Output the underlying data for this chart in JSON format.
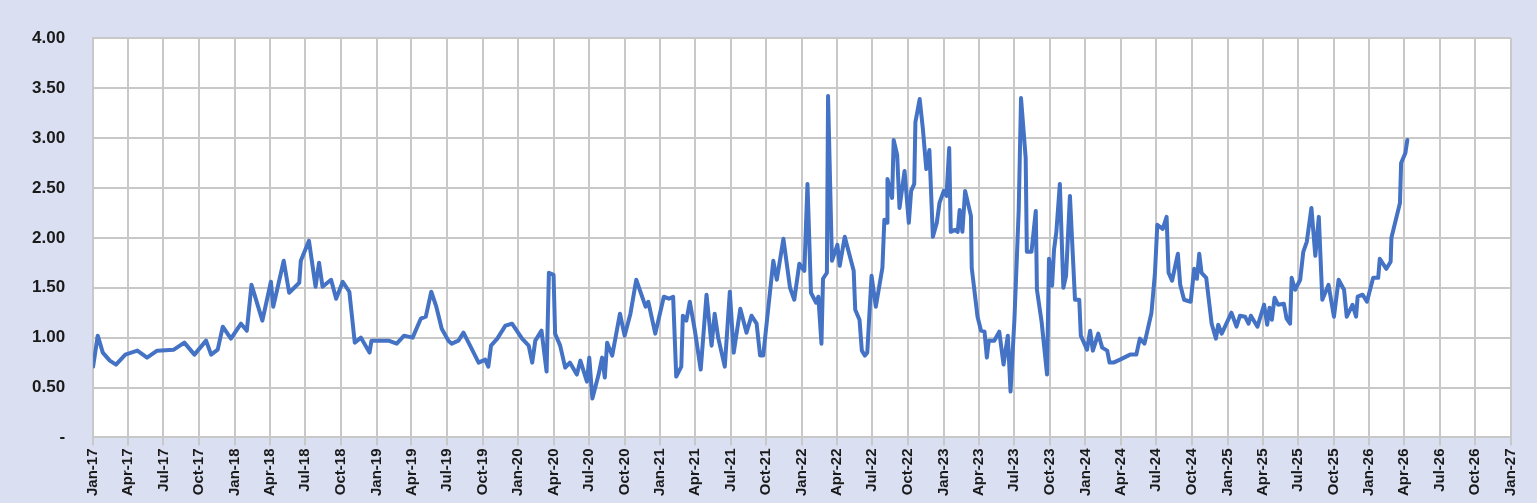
{
  "chart_data": {
    "type": "line",
    "x": [
      "2017-01-01",
      "2017-01-13",
      "2017-01-26",
      "2017-02-13",
      "2017-03-01",
      "2017-03-25",
      "2017-04-25",
      "2017-05-20",
      "2017-06-15",
      "2017-07-28",
      "2017-08-24",
      "2017-09-19",
      "2017-10-19",
      "2017-11-01",
      "2017-11-18",
      "2017-12-01",
      "2017-12-22",
      "2018-01-17",
      "2018-02-01",
      "2018-02-13",
      "2018-03-13",
      "2018-04-04",
      "2018-04-10",
      "2018-05-07",
      "2018-05-21",
      "2018-06-16",
      "2018-06-20",
      "2018-07-11",
      "2018-07-28",
      "2018-08-06",
      "2018-08-15",
      "2018-09-06",
      "2018-09-19",
      "2018-10-06",
      "2018-10-23",
      "2018-11-06",
      "2018-11-22",
      "2018-12-14",
      "2018-12-19",
      "2019-02-01",
      "2019-02-22",
      "2019-03-13",
      "2019-04-04",
      "2019-04-25",
      "2019-05-08",
      "2019-05-22",
      "2019-06-04",
      "2019-06-18",
      "2019-07-05",
      "2019-07-14",
      "2019-07-31",
      "2019-08-13",
      "2019-08-30",
      "2019-09-21",
      "2019-10-08",
      "2019-10-16",
      "2019-10-23",
      "2019-11-08",
      "2019-11-29",
      "2019-12-16",
      "2020-01-11",
      "2020-01-28",
      "2020-02-06",
      "2020-02-14",
      "2020-03-01",
      "2020-03-14",
      "2020-03-20",
      "2020-04-01",
      "2020-04-05",
      "2020-04-18",
      "2020-05-01",
      "2020-05-13",
      "2020-05-31",
      "2020-06-09",
      "2020-06-26",
      "2020-07-02",
      "2020-07-10",
      "2020-07-26",
      "2020-08-04",
      "2020-08-11",
      "2020-08-17",
      "2020-08-30",
      "2020-09-19",
      "2020-10-01",
      "2020-10-16",
      "2020-10-31",
      "2020-11-24",
      "2020-12-01",
      "2020-12-19",
      "2021-01-10",
      "2021-01-23",
      "2021-02-03",
      "2021-02-11",
      "2021-02-24",
      "2021-02-28",
      "2021-03-09",
      "2021-03-18",
      "2021-03-31",
      "2021-04-15",
      "2021-04-30",
      "2021-05-13",
      "2021-05-21",
      "2021-05-30",
      "2021-06-16",
      "2021-06-29",
      "2021-07-09",
      "2021-07-26",
      "2021-08-11",
      "2021-08-24",
      "2021-09-06",
      "2021-09-15",
      "2021-09-23",
      "2021-10-19",
      "2021-10-28",
      "2021-11-14",
      "2021-12-01",
      "2021-12-12",
      "2021-12-25",
      "2022-01-07",
      "2022-01-15",
      "2022-01-24",
      "2022-02-06",
      "2022-02-12",
      "2022-02-20",
      "2022-02-24",
      "2022-03-06",
      "2022-03-09",
      "2022-03-19",
      "2022-04-02",
      "2022-04-08",
      "2022-04-21",
      "2022-05-14",
      "2022-05-18",
      "2022-05-29",
      "2022-06-04",
      "2022-06-12",
      "2022-06-18",
      "2022-06-29",
      "2022-07-10",
      "2022-07-27",
      "2022-08-01",
      "2022-08-08",
      "2022-08-09",
      "2022-08-21",
      "2022-08-25",
      "2022-09-03",
      "2022-09-09",
      "2022-09-22",
      "2022-10-03",
      "2022-10-09",
      "2022-10-17",
      "2022-10-20",
      "2022-10-31",
      "2022-11-08",
      "2022-11-17",
      "2022-11-25",
      "2022-12-04",
      "2022-12-14",
      "2022-12-21",
      "2023-01-01",
      "2023-01-08",
      "2023-01-15",
      "2023-01-19",
      "2023-01-30",
      "2023-02-06",
      "2023-02-11",
      "2023-02-18",
      "2023-02-25",
      "2023-03-12",
      "2023-03-14",
      "2023-03-29",
      "2023-04-07",
      "2023-04-16",
      "2023-04-22",
      "2023-04-27",
      "2023-05-11",
      "2023-05-24",
      "2023-06-04",
      "2023-06-15",
      "2023-06-22",
      "2023-07-02",
      "2023-07-13",
      "2023-07-19",
      "2023-07-31",
      "2023-08-03",
      "2023-08-15",
      "2023-08-26",
      "2023-08-29",
      "2023-09-10",
      "2023-09-24",
      "2023-09-29",
      "2023-10-07",
      "2023-10-12",
      "2023-10-18",
      "2023-10-27",
      "2023-11-05",
      "2023-11-12",
      "2023-11-22",
      "2023-12-05",
      "2023-12-16",
      "2023-12-20",
      "2024-01-05",
      "2024-01-13",
      "2024-01-20",
      "2024-02-03",
      "2024-02-13",
      "2024-02-26",
      "2024-03-03",
      "2024-03-13",
      "2024-03-30",
      "2024-04-25",
      "2024-05-11",
      "2024-05-20",
      "2024-06-01",
      "2024-06-19",
      "2024-06-28",
      "2024-07-04",
      "2024-07-18",
      "2024-07-28",
      "2024-08-02",
      "2024-08-11",
      "2024-08-26",
      "2024-09-01",
      "2024-09-11",
      "2024-09-28",
      "2024-10-07",
      "2024-10-14",
      "2024-10-20",
      "2024-10-26",
      "2024-11-07",
      "2024-11-21",
      "2024-12-02",
      "2024-12-08",
      "2024-12-17",
      "2025-01-11",
      "2025-01-24",
      "2025-02-02",
      "2025-02-15",
      "2025-02-24",
      "2025-03-02",
      "2025-03-19",
      "2025-04-05",
      "2025-04-13",
      "2025-04-19",
      "2025-04-25",
      "2025-05-02",
      "2025-05-11",
      "2025-05-26",
      "2025-06-02",
      "2025-06-11",
      "2025-06-15",
      "2025-06-24",
      "2025-07-07",
      "2025-07-15",
      "2025-07-24",
      "2025-08-05",
      "2025-08-15",
      "2025-08-24",
      "2025-09-02",
      "2025-09-18",
      "2025-10-02",
      "2025-10-14",
      "2025-10-28",
      "2025-11-04",
      "2025-11-19",
      "2025-11-28",
      "2025-12-02",
      "2025-12-15",
      "2025-12-26",
      "2026-01-11",
      "2026-01-24",
      "2026-01-28",
      "2026-02-14",
      "2026-02-25",
      "2026-02-27",
      "2026-03-21",
      "2026-03-24",
      "2026-04-04",
      "2026-04-09"
    ],
    "series": [
      {
        "color": "#4472c4",
        "values": [
          0.71,
          1.02,
          0.85,
          0.77,
          0.73,
          0.83,
          0.87,
          0.8,
          0.87,
          0.88,
          0.95,
          0.83,
          0.97,
          0.83,
          0.88,
          1.11,
          0.99,
          1.14,
          1.07,
          1.53,
          1.17,
          1.56,
          1.31,
          1.77,
          1.45,
          1.55,
          1.77,
          1.97,
          1.51,
          1.75,
          1.51,
          1.58,
          1.39,
          1.56,
          1.46,
          0.95,
          1.0,
          0.85,
          0.97,
          0.97,
          0.94,
          1.02,
          1.0,
          1.19,
          1.21,
          1.46,
          1.31,
          1.09,
          0.97,
          0.94,
          0.97,
          1.05,
          0.92,
          0.75,
          0.78,
          0.71,
          0.92,
          0.99,
          1.12,
          1.14,
          0.99,
          0.92,
          0.75,
          0.97,
          1.07,
          0.66,
          1.65,
          1.63,
          1.04,
          0.92,
          0.7,
          0.75,
          0.63,
          0.77,
          0.56,
          0.8,
          0.39,
          0.63,
          0.8,
          0.6,
          0.95,
          0.82,
          1.24,
          1.02,
          1.24,
          1.58,
          1.31,
          1.36,
          1.04,
          1.41,
          1.39,
          1.41,
          0.61,
          0.71,
          1.22,
          1.17,
          1.36,
          1.07,
          0.68,
          1.43,
          0.92,
          1.24,
          1.0,
          0.71,
          1.46,
          0.85,
          1.29,
          1.05,
          1.22,
          1.14,
          0.82,
          0.82,
          1.77,
          1.58,
          1.99,
          1.5,
          1.38,
          1.74,
          1.67,
          2.54,
          1.45,
          1.35,
          1.41,
          0.94,
          1.59,
          1.65,
          3.42,
          1.77,
          1.93,
          1.72,
          2.01,
          1.67,
          1.28,
          1.18,
          0.87,
          0.82,
          0.85,
          1.62,
          1.31,
          1.7,
          2.18,
          2.15,
          2.59,
          2.4,
          2.98,
          2.83,
          2.3,
          2.67,
          2.15,
          2.47,
          2.54,
          3.16,
          3.39,
          3.1,
          2.69,
          2.88,
          2.01,
          2.15,
          2.35,
          2.47,
          2.42,
          2.9,
          2.06,
          2.08,
          2.06,
          2.28,
          2.06,
          2.47,
          2.22,
          1.7,
          1.21,
          1.07,
          1.06,
          0.8,
          0.97,
          0.97,
          1.06,
          0.73,
          1.02,
          0.46,
          1.18,
          2.27,
          3.4,
          2.8,
          1.86,
          1.86,
          2.27,
          1.48,
          1.16,
          0.63,
          1.79,
          1.52,
          1.88,
          2.06,
          2.54,
          1.5,
          1.62,
          2.42,
          1.38,
          1.38,
          1.02,
          0.88,
          1.07,
          0.87,
          1.04,
          0.9,
          0.87,
          0.75,
          0.75,
          0.78,
          0.83,
          0.83,
          0.99,
          0.94,
          1.25,
          1.65,
          2.13,
          2.09,
          2.21,
          1.65,
          1.57,
          1.84,
          1.53,
          1.38,
          1.36,
          1.69,
          1.59,
          1.84,
          1.65,
          1.6,
          1.14,
          0.99,
          1.13,
          1.04,
          1.25,
          1.11,
          1.22,
          1.21,
          1.14,
          1.22,
          1.11,
          1.33,
          1.13,
          1.3,
          1.18,
          1.4,
          1.33,
          1.34,
          1.19,
          1.14,
          1.6,
          1.48,
          1.58,
          1.86,
          1.96,
          2.3,
          1.82,
          2.21,
          1.38,
          1.53,
          1.21,
          1.58,
          1.48,
          1.21,
          1.33,
          1.21,
          1.41,
          1.43,
          1.36,
          1.6,
          1.6,
          1.79,
          1.69,
          1.76,
          2.0,
          2.35,
          2.75,
          2.85,
          2.98
        ]
      }
    ],
    "xlim": [
      "2017-01-01",
      "2027-01-01"
    ],
    "xticks": [
      {
        "value": "2017-01",
        "label": "Jan-17"
      },
      {
        "value": "2017-04",
        "label": "Apr-17"
      },
      {
        "value": "2017-07",
        "label": "Jul-17"
      },
      {
        "value": "2017-10",
        "label": "Oct-17"
      },
      {
        "value": "2018-01",
        "label": "Jan-18"
      },
      {
        "value": "2018-04",
        "label": "Apr-18"
      },
      {
        "value": "2018-07",
        "label": "Jul-18"
      },
      {
        "value": "2018-10",
        "label": "Oct-18"
      },
      {
        "value": "2019-01",
        "label": "Jan-19"
      },
      {
        "value": "2019-04",
        "label": "Apr-19"
      },
      {
        "value": "2019-07",
        "label": "Jul-19"
      },
      {
        "value": "2019-10",
        "label": "Oct-19"
      },
      {
        "value": "2020-01",
        "label": "Jan-20"
      },
      {
        "value": "2020-04",
        "label": "Apr-20"
      },
      {
        "value": "2020-07",
        "label": "Jul-20"
      },
      {
        "value": "2020-10",
        "label": "Oct-20"
      },
      {
        "value": "2021-01",
        "label": "Jan-21"
      },
      {
        "value": "2021-04",
        "label": "Apr-21"
      },
      {
        "value": "2021-07",
        "label": "Jul-21"
      },
      {
        "value": "2021-10",
        "label": "Oct-21"
      },
      {
        "value": "2022-01",
        "label": "Jan-22"
      },
      {
        "value": "2022-04",
        "label": "Apr-22"
      },
      {
        "value": "2022-07",
        "label": "Jul-22"
      },
      {
        "value": "2022-10",
        "label": "Oct-22"
      },
      {
        "value": "2023-01",
        "label": "Jan-23"
      },
      {
        "value": "2023-04",
        "label": "Apr-23"
      },
      {
        "value": "2023-07",
        "label": "Jul-23"
      },
      {
        "value": "2023-10",
        "label": "Oct-23"
      },
      {
        "value": "2024-01",
        "label": "Jan-24"
      },
      {
        "value": "2024-04",
        "label": "Apr-24"
      },
      {
        "value": "2024-07",
        "label": "Jul-24"
      },
      {
        "value": "2024-10",
        "label": "Oct-24"
      },
      {
        "value": "2025-01",
        "label": "Jan-25"
      },
      {
        "value": "2025-04",
        "label": "Apr-25"
      },
      {
        "value": "2025-07",
        "label": "Jul-25"
      },
      {
        "value": "2025-10",
        "label": "Oct-25"
      },
      {
        "value": "2026-01",
        "label": "Jan-26"
      },
      {
        "value": "2026-04",
        "label": "Apr-26"
      },
      {
        "value": "2026-07",
        "label": "Jul-26"
      },
      {
        "value": "2026-10",
        "label": "Oct-26"
      },
      {
        "value": "2027-01",
        "label": "Jan-27"
      }
    ],
    "ylim": [
      0,
      4
    ],
    "yticks": [
      {
        "value": 0,
        "label": "-"
      },
      {
        "value": 0.5,
        "label": "0.50"
      },
      {
        "value": 1,
        "label": "1.00"
      },
      {
        "value": 1.5,
        "label": "1.50"
      },
      {
        "value": 2,
        "label": "2.00"
      },
      {
        "value": 2.5,
        "label": "2.50"
      },
      {
        "value": 3,
        "label": "3.00"
      },
      {
        "value": 3.5,
        "label": "3.50"
      },
      {
        "value": 4,
        "label": "4.00"
      }
    ],
    "grid": true,
    "marker": "none",
    "line_style": "solid"
  }
}
